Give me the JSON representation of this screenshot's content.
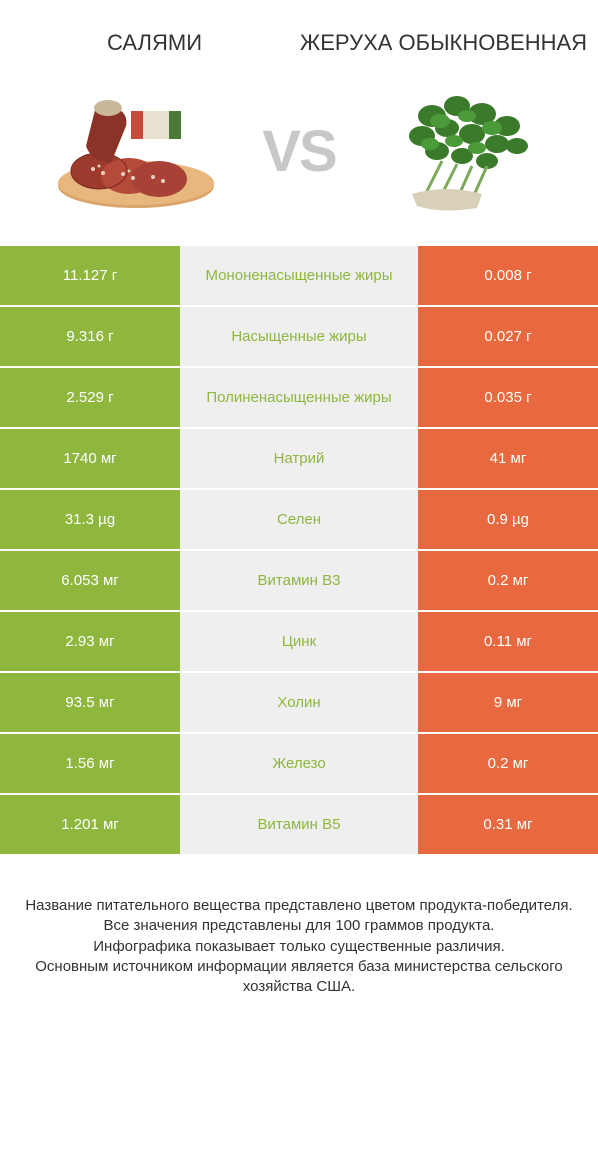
{
  "titles": {
    "left": "Салями",
    "right": "Жеруха обыкновенная"
  },
  "vs": "VS",
  "colors": {
    "green": "#8fb73e",
    "orange": "#e8683f",
    "mid_bg": "#efefef",
    "vs_color": "#c8c8c8",
    "white": "#ffffff"
  },
  "rows": [
    {
      "left": "11.127 г",
      "mid": "Мононенасыщенные жиры",
      "right": "0.008 г",
      "winner": "left"
    },
    {
      "left": "9.316 г",
      "mid": "Насыщенные жиры",
      "right": "0.027 г",
      "winner": "left"
    },
    {
      "left": "2.529 г",
      "mid": "Полиненасыщенные жиры",
      "right": "0.035 г",
      "winner": "left"
    },
    {
      "left": "1740 мг",
      "mid": "Натрий",
      "right": "41 мг",
      "winner": "left"
    },
    {
      "left": "31.3 µg",
      "mid": "Селен",
      "right": "0.9 µg",
      "winner": "left"
    },
    {
      "left": "6.053 мг",
      "mid": "Витамин B3",
      "right": "0.2 мг",
      "winner": "left"
    },
    {
      "left": "2.93 мг",
      "mid": "Цинк",
      "right": "0.11 мг",
      "winner": "left"
    },
    {
      "left": "93.5 мг",
      "mid": "Холин",
      "right": "9 мг",
      "winner": "left"
    },
    {
      "left": "1.56 мг",
      "mid": "Железо",
      "right": "0.2 мг",
      "winner": "left"
    },
    {
      "left": "1.201 мг",
      "mid": "Витамин B5",
      "right": "0.31 мг",
      "winner": "left"
    }
  ],
  "footer": "Название питательного вещества представлено цветом продукта-победителя.\nВсе значения представлены для 100 граммов продукта.\nИнфографика показывает только существенные различия.\nОсновным источником информации является база министерства сельского хозяйства США."
}
